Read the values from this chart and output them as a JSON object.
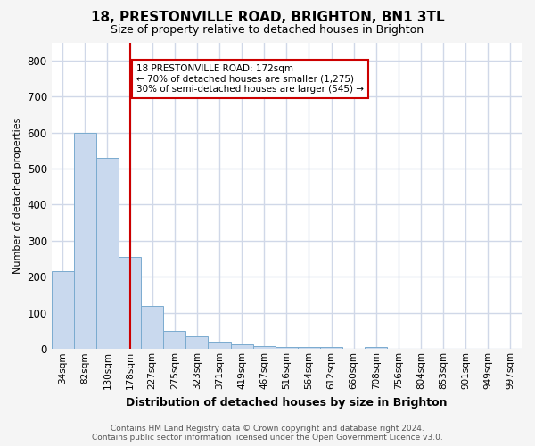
{
  "title": "18, PRESTONVILLE ROAD, BRIGHTON, BN1 3TL",
  "subtitle": "Size of property relative to detached houses in Brighton",
  "xlabel": "Distribution of detached houses by size in Brighton",
  "ylabel": "Number of detached properties",
  "footer1": "Contains HM Land Registry data © Crown copyright and database right 2024.",
  "footer2": "Contains public sector information licensed under the Open Government Licence v3.0.",
  "bin_labels": [
    "34sqm",
    "82sqm",
    "130sqm",
    "178sqm",
    "227sqm",
    "275sqm",
    "323sqm",
    "371sqm",
    "419sqm",
    "467sqm",
    "516sqm",
    "564sqm",
    "612sqm",
    "660sqm",
    "708sqm",
    "756sqm",
    "804sqm",
    "853sqm",
    "901sqm",
    "949sqm",
    "997sqm"
  ],
  "bar_values": [
    215,
    600,
    530,
    255,
    120,
    50,
    35,
    20,
    12,
    7,
    5,
    5,
    5,
    0,
    5,
    0,
    0,
    0,
    0,
    0,
    0
  ],
  "bar_color": "#c9d9ee",
  "bar_edge_color": "#7aabcf",
  "vline_x": 3,
  "vline_color": "#cc0000",
  "annotation_text": "18 PRESTONVILLE ROAD: 172sqm\n← 70% of detached houses are smaller (1,275)\n30% of semi-detached houses are larger (545) →",
  "annotation_box_facecolor": "#ffffff",
  "annotation_box_edgecolor": "#cc0000",
  "ylim": [
    0,
    850
  ],
  "yticks": [
    0,
    100,
    200,
    300,
    400,
    500,
    600,
    700,
    800
  ],
  "fig_background": "#f5f5f5",
  "plot_background": "#ffffff",
  "grid_color": "#d0d8e8",
  "title_fontsize": 11,
  "subtitle_fontsize": 9,
  "xlabel_fontsize": 9,
  "ylabel_fontsize": 8
}
